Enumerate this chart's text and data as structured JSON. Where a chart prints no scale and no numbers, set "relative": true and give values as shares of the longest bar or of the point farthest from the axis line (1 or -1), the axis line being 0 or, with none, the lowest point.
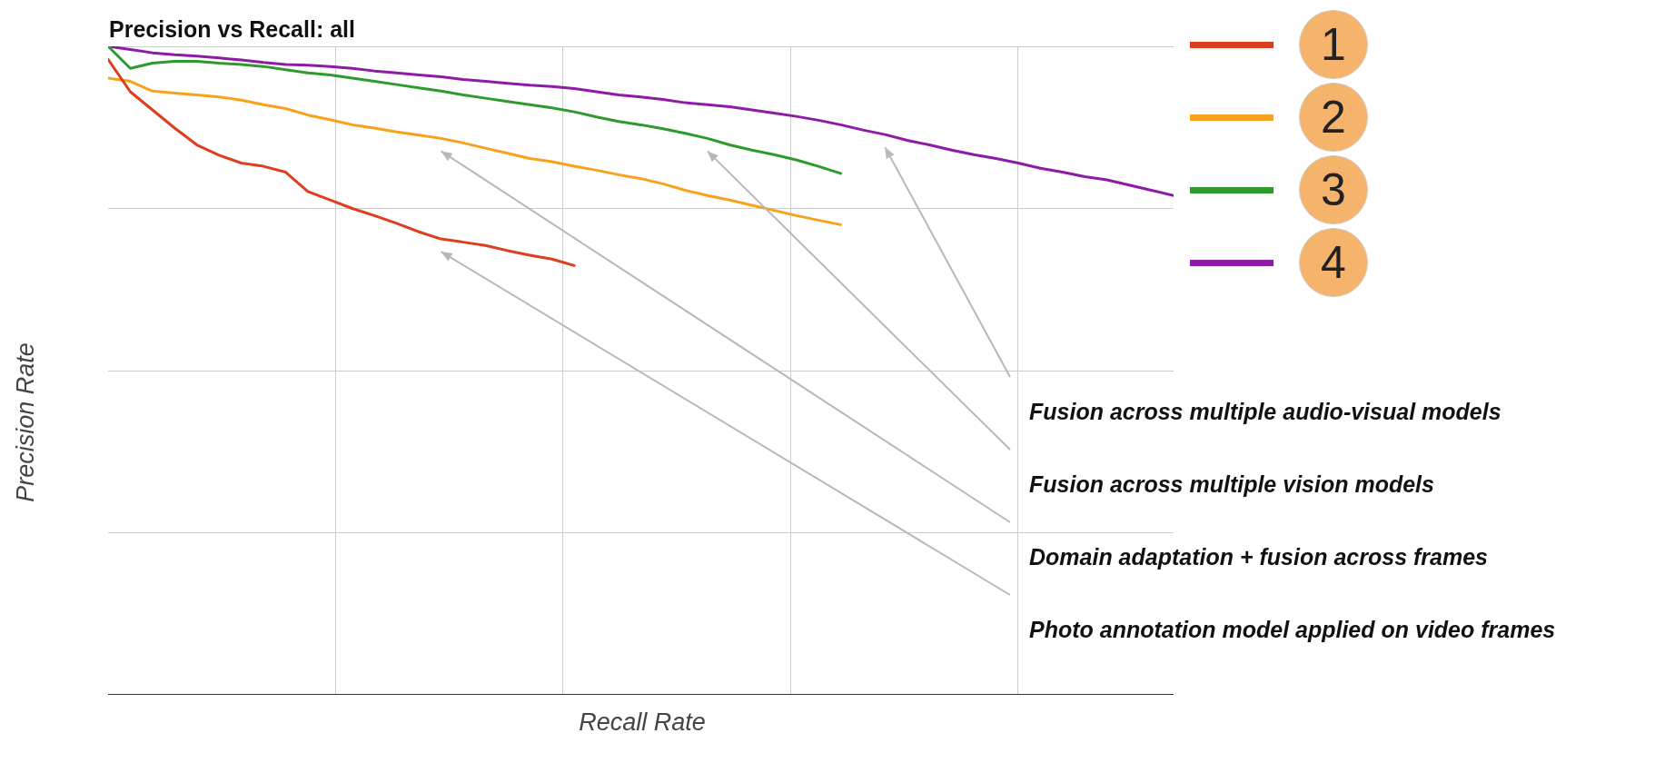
{
  "chart_data": {
    "type": "line",
    "title": "Precision vs Recall: all",
    "xlabel": "Recall Rate",
    "ylabel": "Precision Rate",
    "relative": true,
    "grid": true,
    "legend": "right",
    "marker": "none",
    "line_style": "solid",
    "categories": [
      null,
      null,
      null,
      null,
      null,
      null,
      null,
      null,
      null,
      null,
      null,
      null,
      null,
      null,
      null,
      null,
      null,
      null,
      null,
      null,
      null,
      null,
      null,
      null,
      null,
      null,
      null,
      null,
      null,
      null,
      null,
      null,
      null,
      null,
      null,
      null,
      null,
      null,
      null,
      null,
      null,
      null,
      null,
      null,
      null,
      null,
      null,
      null,
      null
    ],
    "series": [
      {
        "name": "1",
        "color": "#dd3e1e",
        "values": [
          0.98,
          0.93,
          0.902,
          0.874,
          0.848,
          0.832,
          0.82,
          0.815,
          0.806,
          0.776,
          0.763,
          0.75,
          0.739,
          0.727,
          0.714,
          0.703,
          0.698,
          0.693,
          0.685,
          0.678,
          0.672,
          0.662,
          null,
          null,
          null,
          null,
          null,
          null,
          null,
          null,
          null,
          null,
          null,
          null,
          null,
          null,
          null,
          null,
          null,
          null,
          null,
          null,
          null,
          null,
          null,
          null,
          null,
          null,
          null
        ]
      },
      {
        "name": "2",
        "color": "#f9a11b",
        "values": [
          0.951,
          0.946,
          0.931,
          0.928,
          0.925,
          0.922,
          0.917,
          0.91,
          0.904,
          0.894,
          0.887,
          0.879,
          0.874,
          0.868,
          0.863,
          0.858,
          0.851,
          0.843,
          0.835,
          0.827,
          0.822,
          0.815,
          0.809,
          0.802,
          0.796,
          0.788,
          0.778,
          0.77,
          0.763,
          0.755,
          0.747,
          0.739,
          0.732,
          0.725,
          null,
          null,
          null,
          null,
          null,
          null,
          null,
          null,
          null,
          null,
          null,
          null,
          null,
          null,
          null
        ]
      },
      {
        "name": "3",
        "color": "#2e9a2e",
        "values": [
          1.0,
          0.966,
          0.974,
          0.977,
          0.977,
          0.974,
          0.972,
          0.969,
          0.964,
          0.959,
          0.956,
          0.951,
          0.946,
          0.941,
          0.936,
          0.931,
          0.925,
          0.92,
          0.915,
          0.91,
          0.905,
          0.899,
          0.891,
          0.884,
          0.879,
          0.873,
          0.866,
          0.858,
          0.848,
          0.84,
          0.833,
          0.825,
          0.815,
          0.804,
          null,
          null,
          null,
          null,
          null,
          null,
          null,
          null,
          null,
          null,
          null,
          null,
          null,
          null,
          null
        ]
      },
      {
        "name": "4",
        "color": "#8e1aa8",
        "values": [
          1.0,
          0.995,
          0.99,
          0.987,
          0.985,
          0.982,
          0.979,
          0.975,
          0.972,
          0.971,
          0.969,
          0.966,
          0.962,
          0.959,
          0.956,
          0.953,
          0.949,
          0.946,
          0.943,
          0.94,
          0.938,
          0.935,
          0.93,
          0.925,
          0.922,
          0.918,
          0.913,
          0.91,
          0.907,
          0.902,
          0.897,
          0.892,
          0.886,
          0.879,
          0.871,
          0.864,
          0.855,
          0.848,
          0.84,
          0.833,
          0.827,
          0.82,
          0.812,
          0.806,
          0.799,
          0.794,
          0.786,
          0.778,
          0.77
        ]
      }
    ],
    "annotations": [
      "Fusion across multiple audio-visual models",
      "Fusion across multiple vision models",
      "Domain adaptation + fusion across frames",
      "Photo annotation model applied on video frames"
    ]
  }
}
